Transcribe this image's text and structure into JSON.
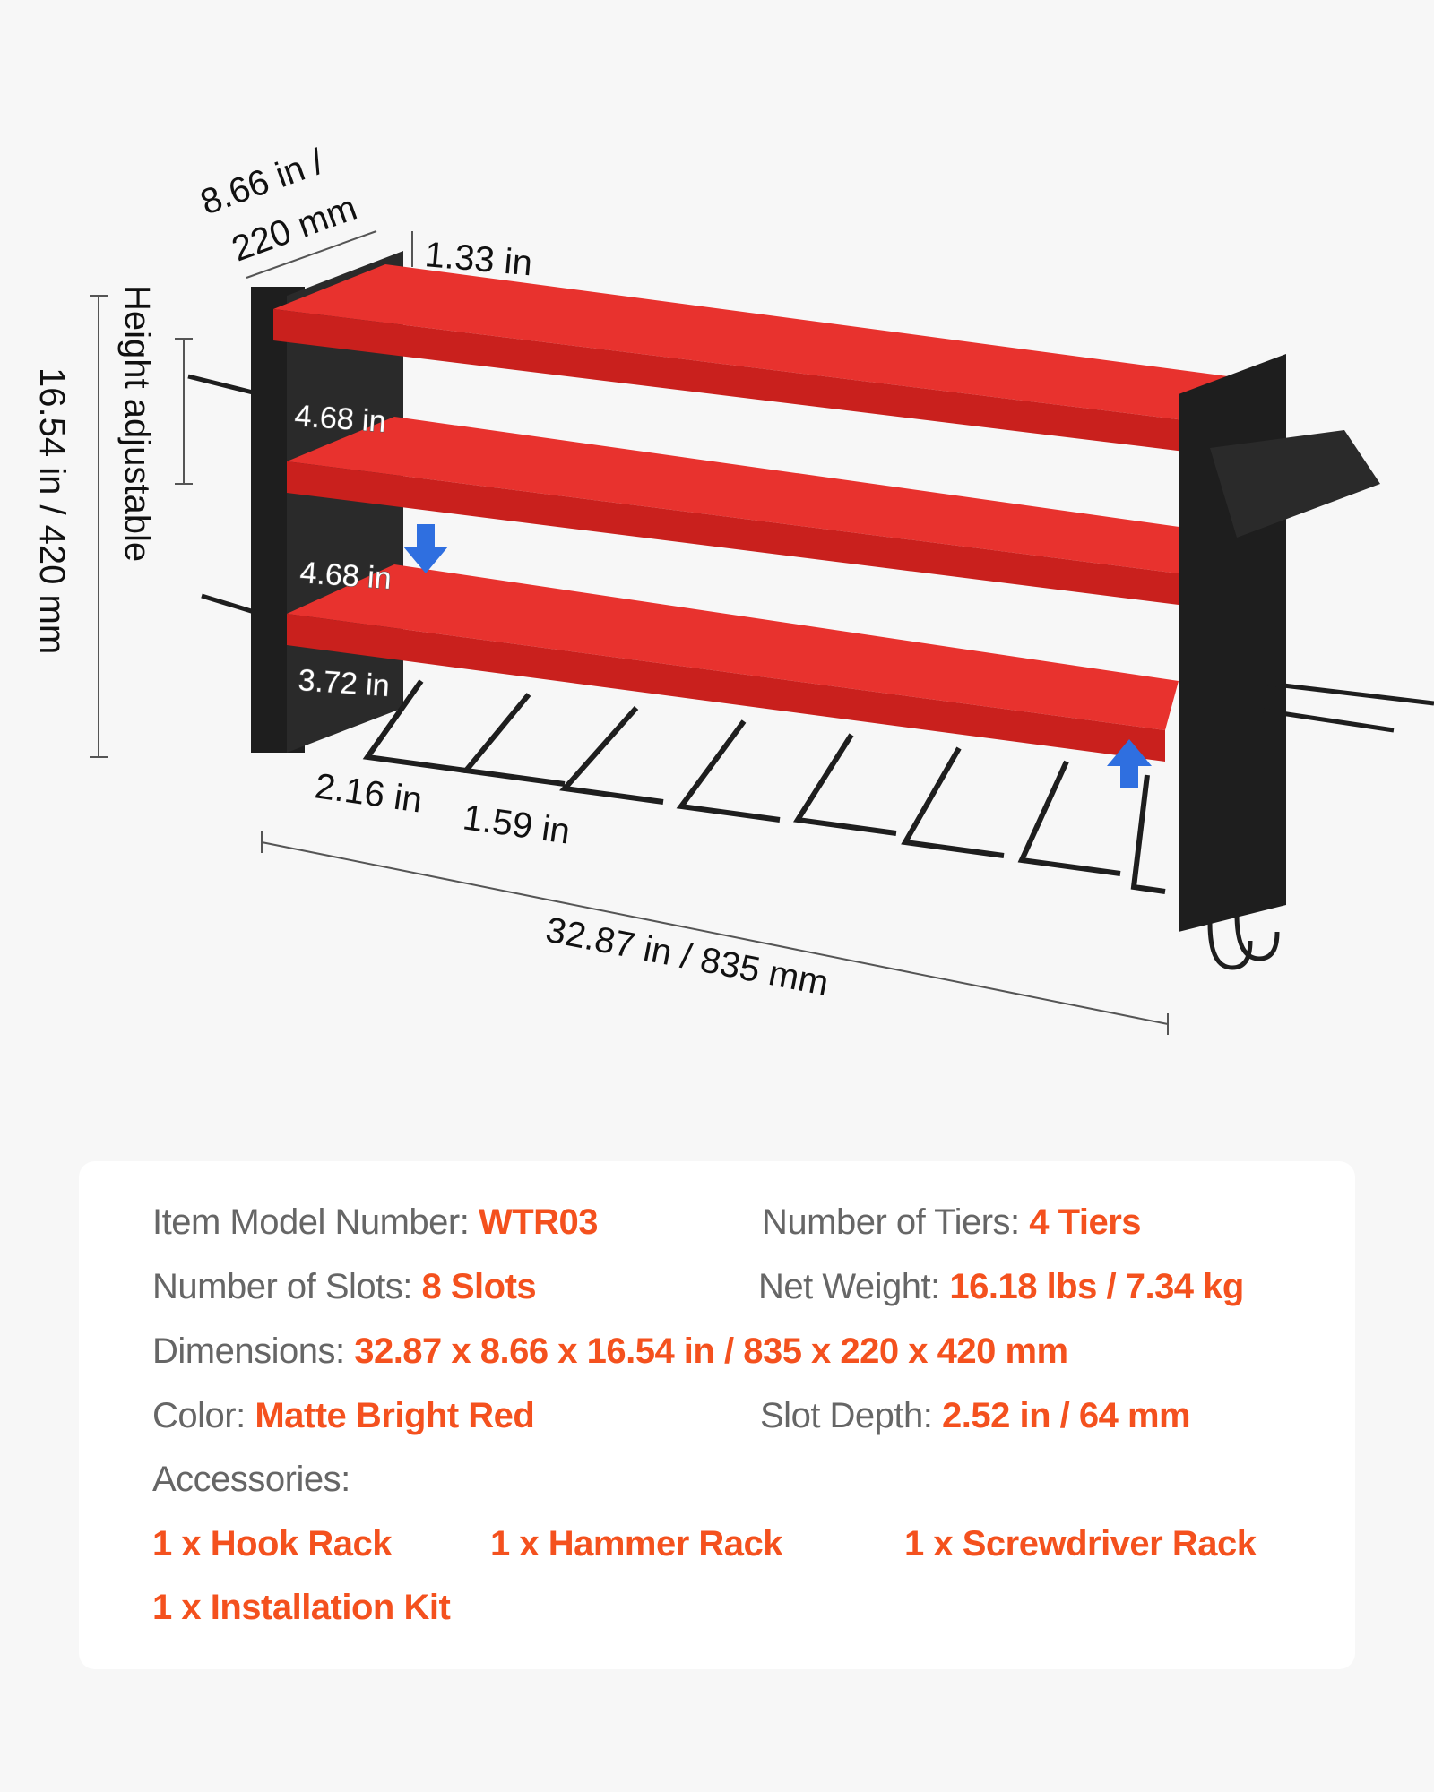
{
  "dimensions": {
    "depth": "8.66 in  /",
    "depth_mm": "220 mm",
    "top_lip": "1.33 in",
    "height_note": "Height adjustable",
    "height": "16.54 in  / 420 mm",
    "tier_gap_1": "4.68 in",
    "tier_gap_2": "4.68 in",
    "tier_gap_3": "3.72 in",
    "slot_width": "2.16 in",
    "slot_gap": "1.59 in",
    "width": "32.87 in  / 835 mm"
  },
  "colors": {
    "accent": "#f4511e",
    "shelf": "#e8322e",
    "frame": "#1e1e1e",
    "arrow": "#2f6fe0"
  },
  "specs": {
    "model": {
      "label": "Item Model Number: ",
      "value": "WTR03"
    },
    "tiers": {
      "label": "Number of Tiers: ",
      "value": "4 Tiers"
    },
    "slots": {
      "label": "Number of Slots: ",
      "value": "8 Slots"
    },
    "weight": {
      "label": "Net Weight: ",
      "value": "16.18 lbs / 7.34 kg"
    },
    "dims": {
      "label": "Dimensions: ",
      "value": "32.87 x 8.66 x 16.54 in / 835 x 220 x 420 mm"
    },
    "color": {
      "label": "Color: ",
      "value": "Matte Bright Red"
    },
    "depth": {
      "label": "Slot Depth: ",
      "value": "2.52 in / 64 mm"
    },
    "accessories_label": "Accessories:",
    "accessories": [
      "1 x Hook Rack",
      "1 x Hammer Rack",
      "1 x Screwdriver Rack",
      "1 x Installation Kit"
    ]
  }
}
